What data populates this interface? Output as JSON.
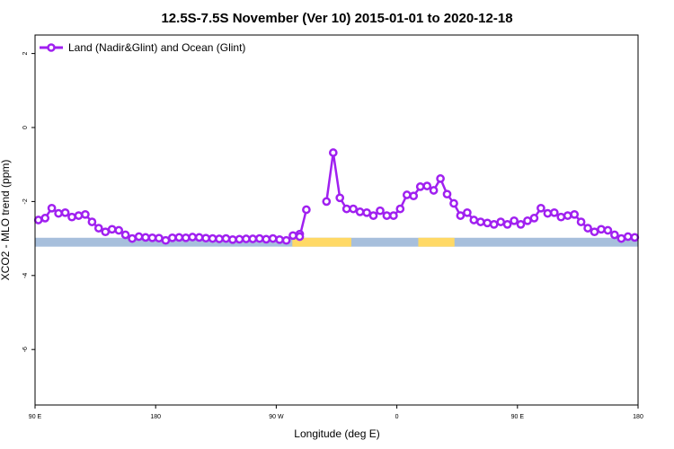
{
  "chart_data": {
    "type": "line",
    "title": "12.5S-7.5S November (Ver 10)   2015-01-01 to 2020-12-18",
    "xlabel": "Longitude (deg E)",
    "ylabel": "XCO2 - MLO trend (ppm)",
    "x_ticks": [
      {
        "value": 90,
        "label": "90 E"
      },
      {
        "value": 180,
        "label": "180"
      },
      {
        "value": 270,
        "label": "90 W"
      },
      {
        "value": 360,
        "label": "0"
      },
      {
        "value": 450,
        "label": "90 E"
      },
      {
        "value": 540,
        "label": "180"
      }
    ],
    "y_ticks": [
      2,
      0,
      -2,
      -4,
      -6
    ],
    "xlim": [
      90,
      540
    ],
    "ylim": [
      -7.5,
      2.5
    ],
    "legend_position": "top-left",
    "grid": false,
    "series": [
      {
        "name": "Land (Nadir&Glint) and Ocean (Glint)",
        "color": "#a020f0",
        "segments": [
          {
            "x": [
              92.5,
              97.5,
              102.5,
              107.5,
              112.5,
              117.5,
              122.5,
              127.5,
              132.5,
              137.5,
              142.5,
              147.5,
              152.5,
              157.5,
              162.5,
              167.5,
              172.5,
              177.5,
              182.5,
              187.5,
              192.5,
              197.5,
              202.5,
              207.5,
              212.5,
              217.5,
              222.5,
              227.5,
              232.5,
              237.5,
              242.5,
              247.5,
              252.5,
              257.5,
              262.5,
              267.5,
              272.5,
              277.5,
              282.5,
              287.5
            ],
            "y": [
              -2.5,
              -2.45,
              -2.18,
              -2.32,
              -2.3,
              -2.42,
              -2.38,
              -2.35,
              -2.55,
              -2.72,
              -2.82,
              -2.75,
              -2.78,
              -2.9,
              -3.0,
              -2.95,
              -2.97,
              -2.98,
              -2.99,
              -3.05,
              -2.98,
              -2.97,
              -2.98,
              -2.96,
              -2.97,
              -2.99,
              -3.0,
              -3.01,
              -3.0,
              -3.03,
              -3.02,
              -3.01,
              -3.01,
              -3.0,
              -3.02,
              -3.0,
              -3.03,
              -3.05,
              -2.92,
              -2.88
            ]
          },
          {
            "x": [
              287.5,
              292.5
            ],
            "y": [
              -2.95,
              -2.22
            ]
          },
          {
            "x": [
              307.5,
              312.5,
              317.5,
              322.5,
              327.5,
              332.5,
              337.5,
              342.5,
              347.5,
              352.5,
              357.5,
              362.5,
              367.5,
              372.5,
              377.5,
              382.5,
              387.5,
              392.5,
              397.5,
              402.5,
              407.5,
              412.5,
              417.5,
              422.5,
              427.5,
              432.5,
              437.5,
              442.5,
              447.5,
              452.5,
              457.5,
              462.5,
              467.5,
              472.5,
              477.5,
              482.5,
              487.5,
              492.5,
              497.5,
              502.5,
              507.5,
              512.5,
              517.5,
              522.5,
              527.5,
              532.5,
              537.5
            ],
            "y": [
              -2.0,
              -0.68,
              -1.9,
              -2.2,
              -2.2,
              -2.28,
              -2.3,
              -2.38,
              -2.25,
              -2.38,
              -2.38,
              -2.2,
              -1.82,
              -1.85,
              -1.6,
              -1.58,
              -1.7,
              -1.38,
              -1.8,
              -2.05,
              -2.38,
              -2.3,
              -2.5,
              -2.55,
              -2.58,
              -2.62,
              -2.55,
              -2.62,
              -2.52,
              -2.62,
              -2.52,
              -2.45,
              -2.18,
              -2.32,
              -2.3,
              -2.42,
              -2.38,
              -2.35,
              -2.55,
              -2.72,
              -2.82,
              -2.75,
              -2.78,
              -2.9,
              -3.0,
              -2.95,
              -2.97
            ]
          }
        ]
      }
    ],
    "surface_band": {
      "y_top": -2.98,
      "y_bottom": -3.22,
      "ocean_color": "#a7bfdc",
      "land_color": "#ffd966",
      "land_ranges": [
        [
          282,
          326
        ],
        [
          376,
          403
        ]
      ]
    }
  }
}
